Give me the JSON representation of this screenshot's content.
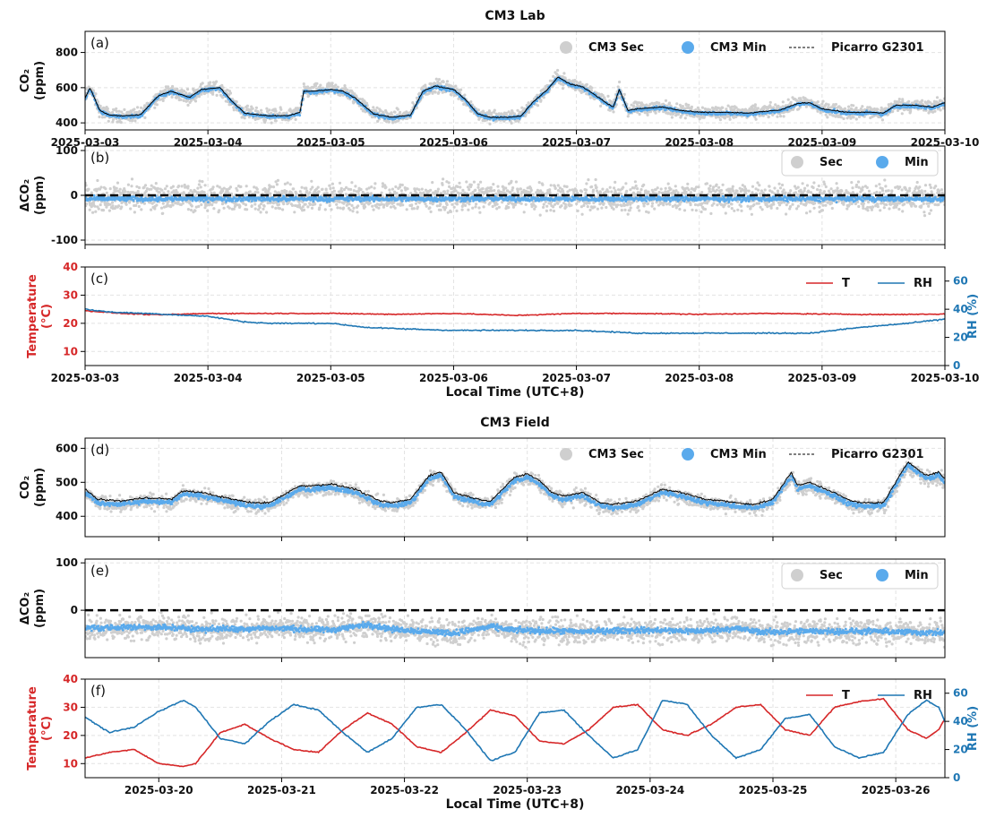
{
  "colors": {
    "sec": "#cfcfcf",
    "min": "#5aaaec",
    "picarro": "#000000",
    "temperature": "#d62728",
    "rh": "#1f77b4",
    "zero_line": "#000000",
    "grid": "#e2e2e2"
  },
  "chart_data": [
    {
      "id": "a",
      "panel_label": "(a)",
      "type": "scatter",
      "section_title": "CM3 Lab",
      "ylabel_lines": [
        "CO₂",
        "(ppm)"
      ],
      "ylim": [
        360,
        920
      ],
      "yticks": [
        400,
        600,
        800
      ],
      "xlim": [
        0,
        7
      ],
      "xticks": [
        0,
        1,
        2,
        3,
        4,
        5,
        6,
        7
      ],
      "xtick_labels": [
        "2025-03-03",
        "2025-03-04",
        "2025-03-05",
        "2025-03-06",
        "2025-03-07",
        "2025-03-08",
        "2025-03-09",
        "2025-03-10"
      ],
      "xlabel": "",
      "grid": true,
      "legend_position": "top-right",
      "series": [
        {
          "name": "CM3 Sec",
          "kind": "sec",
          "spread": 55,
          "offset": 0
        },
        {
          "name": "CM3 Min",
          "kind": "min",
          "spread": 14,
          "offset": -5
        },
        {
          "name": "Picarro G2301",
          "kind": "ref_line"
        }
      ],
      "baseline": {
        "x": [
          0,
          0.04,
          0.12,
          0.2,
          0.3,
          0.45,
          0.55,
          0.6,
          0.7,
          0.85,
          0.95,
          1.1,
          1.2,
          1.3,
          1.5,
          1.65,
          1.75,
          1.78,
          1.85,
          2.0,
          2.1,
          2.2,
          2.35,
          2.5,
          2.65,
          2.75,
          2.85,
          3.0,
          3.1,
          3.2,
          3.3,
          3.45,
          3.55,
          3.65,
          3.75,
          3.85,
          3.95,
          4.05,
          4.15,
          4.25,
          4.3,
          4.35,
          4.42,
          4.5,
          4.7,
          4.85,
          5.0,
          5.2,
          5.4,
          5.6,
          5.65,
          5.8,
          5.9,
          6.0,
          6.2,
          6.4,
          6.5,
          6.6,
          6.75,
          6.9,
          7.0
        ],
        "y": [
          540,
          600,
          470,
          445,
          440,
          445,
          520,
          555,
          580,
          545,
          590,
          600,
          520,
          455,
          440,
          440,
          460,
          580,
          580,
          590,
          580,
          540,
          450,
          432,
          445,
          580,
          610,
          590,
          530,
          450,
          432,
          432,
          440,
          520,
          580,
          660,
          620,
          605,
          560,
          510,
          490,
          590,
          470,
          480,
          490,
          470,
          460,
          460,
          455,
          470,
          470,
          510,
          515,
          480,
          460,
          460,
          455,
          500,
          500,
          490,
          515
        ]
      }
    },
    {
      "id": "b",
      "panel_label": "(b)",
      "type": "scatter",
      "ylabel_lines": [
        "ΔCO₂",
        "(ppm)"
      ],
      "ylim": [
        -110,
        110
      ],
      "yticks": [
        -100,
        0,
        100
      ],
      "xlim": [
        0,
        7
      ],
      "xticks": [
        0,
        1,
        2,
        3,
        4,
        5,
        6,
        7
      ],
      "xtick_labels": [],
      "xlabel": "",
      "grid": true,
      "legend_position": "top-right",
      "zero_line": 0,
      "series": [
        {
          "name": "Sec",
          "kind": "sec",
          "spread": 45,
          "offset": 0
        },
        {
          "name": "Min",
          "kind": "min",
          "spread": 8,
          "offset": -4
        }
      ],
      "baseline": {
        "x": [
          0,
          7
        ],
        "y": [
          -4,
          -4
        ]
      }
    },
    {
      "id": "c",
      "panel_label": "(c)",
      "type": "line",
      "ylabel_lines": [
        "Temperature",
        "(°C)"
      ],
      "ylim": [
        5,
        40
      ],
      "yticks": [
        10,
        20,
        30,
        40
      ],
      "y2label": "RH (%)",
      "y2lim": [
        0,
        70
      ],
      "y2ticks": [
        0,
        20,
        40,
        60
      ],
      "xlim": [
        0,
        7
      ],
      "xticks": [
        0,
        1,
        2,
        3,
        4,
        5,
        6,
        7
      ],
      "xtick_labels": [
        "2025-03-03",
        "2025-03-04",
        "2025-03-05",
        "2025-03-06",
        "2025-03-07",
        "2025-03-08",
        "2025-03-09",
        "2025-03-10"
      ],
      "xlabel": "Local Time (UTC+8)",
      "grid": true,
      "legend_position": "top-right",
      "series": [
        {
          "name": "T",
          "kind": "temp",
          "axis": "left",
          "x": [
            0,
            0.3,
            0.6,
            1.0,
            1.5,
            2.0,
            2.5,
            3.0,
            3.5,
            4.0,
            4.5,
            5.0,
            5.5,
            6.0,
            6.5,
            7.0
          ],
          "y": [
            24.5,
            23.5,
            23,
            23.5,
            23.5,
            23.5,
            23.2,
            23.5,
            22.8,
            23.5,
            23.5,
            23.2,
            23.5,
            23.3,
            23.1,
            23.3
          ]
        },
        {
          "name": "RH",
          "kind": "rh",
          "axis": "right",
          "x": [
            0,
            0.2,
            0.5,
            1.0,
            1.3,
            1.5,
            2.0,
            2.3,
            2.6,
            3.0,
            3.5,
            4.0,
            4.5,
            5.0,
            5.5,
            5.9,
            6.3,
            6.7,
            7.0
          ],
          "y": [
            40,
            38,
            37,
            35,
            31,
            30,
            30,
            27,
            26,
            25,
            25,
            25,
            23,
            23,
            23,
            23,
            27,
            30,
            33
          ]
        }
      ]
    },
    {
      "id": "d",
      "panel_label": "(d)",
      "type": "scatter",
      "section_title": "CM3 Field",
      "ylabel_lines": [
        "CO₂",
        "(ppm)"
      ],
      "ylim": [
        340,
        630
      ],
      "yticks": [
        400,
        500,
        600
      ],
      "xlim": [
        0,
        7
      ],
      "xticks": [
        0.6,
        1.6,
        2.6,
        3.6,
        4.6,
        5.6,
        6.6
      ],
      "xtick_labels": [],
      "xlabel": "",
      "grid": true,
      "legend_position": "top-right",
      "series": [
        {
          "name": "CM3 Sec",
          "kind": "sec",
          "spread": 32,
          "offset": -10
        },
        {
          "name": "CM3 Min",
          "kind": "min",
          "spread": 10,
          "offset": -10
        },
        {
          "name": "Picarro G2301",
          "kind": "ref_line"
        }
      ],
      "baseline": {
        "x": [
          0,
          0.1,
          0.3,
          0.5,
          0.7,
          0.8,
          0.95,
          1.2,
          1.35,
          1.5,
          1.75,
          1.85,
          2.0,
          2.2,
          2.4,
          2.5,
          2.65,
          2.8,
          2.9,
          3.0,
          3.1,
          3.2,
          3.3,
          3.5,
          3.6,
          3.7,
          3.8,
          3.9,
          4.05,
          4.2,
          4.3,
          4.5,
          4.7,
          4.85,
          4.95,
          5.05,
          5.2,
          5.3,
          5.45,
          5.6,
          5.75,
          5.8,
          5.9,
          6.1,
          6.2,
          6.3,
          6.5,
          6.7,
          6.85,
          6.95,
          7.0
        ],
        "y": [
          480,
          450,
          445,
          455,
          450,
          475,
          470,
          450,
          440,
          440,
          490,
          490,
          495,
          480,
          445,
          440,
          450,
          520,
          530,
          470,
          460,
          450,
          445,
          515,
          525,
          505,
          470,
          460,
          470,
          440,
          435,
          445,
          480,
          470,
          460,
          450,
          445,
          440,
          435,
          450,
          530,
          490,
          500,
          470,
          450,
          440,
          440,
          560,
          520,
          530,
          510
        ]
      }
    },
    {
      "id": "e",
      "panel_label": "(e)",
      "type": "scatter",
      "ylabel_lines": [
        "ΔCO₂",
        "(ppm)"
      ],
      "ylim": [
        -100,
        108
      ],
      "yticks": [
        0,
        100
      ],
      "xlim": [
        0,
        7
      ],
      "xticks": [
        0.6,
        1.6,
        2.6,
        3.6,
        4.6,
        5.6,
        6.6
      ],
      "xtick_labels": [],
      "xlabel": "",
      "grid": true,
      "legend_position": "top-right",
      "zero_line": 0,
      "series": [
        {
          "name": "Sec",
          "kind": "sec",
          "spread": 38,
          "offset": -20
        },
        {
          "name": "Min",
          "kind": "min",
          "spread": 9,
          "offset": -20
        }
      ],
      "baseline": {
        "x": [
          0,
          0.5,
          1.0,
          1.5,
          2.0,
          2.3,
          2.5,
          3.0,
          3.3,
          3.5,
          4.0,
          4.5,
          5.0,
          5.3,
          5.5,
          6.0,
          6.5,
          7.0
        ],
        "y": [
          -18,
          -15,
          -20,
          -18,
          -22,
          -10,
          -20,
          -28,
          -15,
          -22,
          -25,
          -22,
          -24,
          -18,
          -26,
          -24,
          -25,
          -28
        ]
      }
    },
    {
      "id": "f",
      "panel_label": "(f)",
      "type": "line",
      "ylabel_lines": [
        "Temperature",
        "(°C)"
      ],
      "ylim": [
        5,
        40
      ],
      "yticks": [
        10,
        20,
        30,
        40
      ],
      "y2label": "RH (%)",
      "y2lim": [
        0,
        70
      ],
      "y2ticks": [
        0,
        20,
        40,
        60
      ],
      "xlim": [
        0,
        7
      ],
      "xticks": [
        0.6,
        1.6,
        2.6,
        3.6,
        4.6,
        5.6,
        6.6
      ],
      "xtick_labels": [
        "2025-03-20",
        "2025-03-21",
        "2025-03-22",
        "2025-03-23",
        "2025-03-24",
        "2025-03-25",
        "2025-03-26"
      ],
      "xlabel": "Local Time (UTC+8)",
      "grid": true,
      "legend_position": "top-right",
      "series": [
        {
          "name": "T",
          "kind": "temp",
          "axis": "left",
          "x": [
            0,
            0.2,
            0.4,
            0.6,
            0.8,
            0.9,
            1.1,
            1.3,
            1.5,
            1.7,
            1.9,
            2.1,
            2.3,
            2.5,
            2.7,
            2.9,
            3.1,
            3.3,
            3.5,
            3.7,
            3.9,
            4.1,
            4.3,
            4.5,
            4.7,
            4.9,
            5.1,
            5.3,
            5.5,
            5.7,
            5.9,
            6.1,
            6.3,
            6.5,
            6.7,
            6.85,
            6.95,
            7.0
          ],
          "y": [
            12,
            14,
            15,
            10,
            9,
            10,
            21,
            24,
            19,
            15,
            14,
            22,
            28,
            24,
            16,
            14,
            21,
            29,
            27,
            18,
            17,
            22,
            30,
            31,
            22,
            20,
            24,
            30,
            31,
            22,
            20,
            30,
            32,
            33,
            22,
            19,
            22,
            26
          ]
        },
        {
          "name": "RH",
          "kind": "rh",
          "axis": "right",
          "x": [
            0,
            0.2,
            0.4,
            0.6,
            0.8,
            0.9,
            1.1,
            1.3,
            1.5,
            1.7,
            1.9,
            2.1,
            2.3,
            2.5,
            2.7,
            2.9,
            3.1,
            3.3,
            3.5,
            3.7,
            3.9,
            4.1,
            4.3,
            4.5,
            4.7,
            4.9,
            5.1,
            5.3,
            5.5,
            5.7,
            5.9,
            6.1,
            6.3,
            6.5,
            6.7,
            6.85,
            6.95,
            7.0
          ],
          "y": [
            43,
            32,
            36,
            47,
            55,
            50,
            28,
            24,
            40,
            52,
            48,
            32,
            18,
            28,
            50,
            52,
            34,
            12,
            18,
            46,
            48,
            30,
            14,
            20,
            55,
            52,
            30,
            14,
            20,
            42,
            45,
            22,
            14,
            18,
            45,
            55,
            50,
            40
          ]
        }
      ]
    }
  ]
}
